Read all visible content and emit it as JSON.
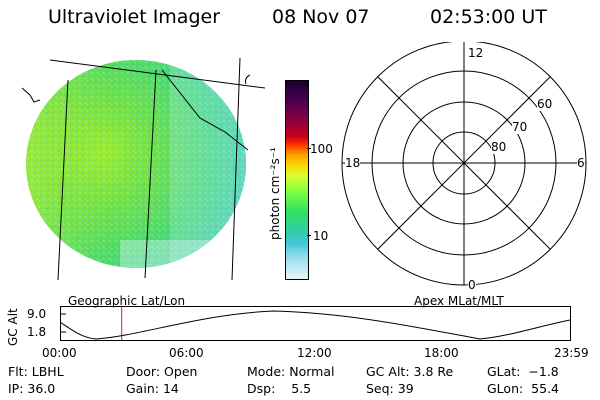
{
  "header": {
    "title": "Ultraviolet Imager",
    "date": "08 Nov 07",
    "time": "02:53:00 UT"
  },
  "colorbar": {
    "unit_label": "photon cm⁻²s⁻¹",
    "ticks": [
      "100",
      "10"
    ],
    "colors": [
      "#1a0030",
      "#4a0050",
      "#8a0040",
      "#c80018",
      "#ff3000",
      "#ff9a00",
      "#ffd200",
      "#d8ff30",
      "#80ff40",
      "#30e060",
      "#30d0a0",
      "#40c8d8",
      "#a0e0f0",
      "#e8f4f8"
    ]
  },
  "polar_plot": {
    "label": "Apex MLat/MLT",
    "mlt_labels": {
      "top": "12",
      "bottom": "0",
      "left": "18",
      "right": "6"
    },
    "lat_labels": [
      "60",
      "70",
      "80"
    ]
  },
  "geo_plot": {
    "label": "Geographic Lat/Lon"
  },
  "altitude_plot": {
    "ylabel": "GC Alt",
    "y_ticks": [
      "9.0",
      "1.8"
    ],
    "x_ticks": [
      "00:00",
      "06:00",
      "12:00",
      "18:00",
      "23:59"
    ],
    "current_time_marker_hours": 2.88
  },
  "info": {
    "row1": {
      "filt_label": "Flt:",
      "filt_value": "LBHL",
      "door_label": "Door:",
      "door_value": "Open",
      "mode_label": "Mode:",
      "mode_value": "Normal",
      "gcalt_label": "GC Alt:",
      "gcalt_value": "3.8 Re",
      "glat_label": "GLat:",
      "glat_value": "−1.8"
    },
    "row2": {
      "ip_label": "IP:",
      "ip_value": "36.0",
      "gain_label": "Gain:",
      "gain_value": "14",
      "dsp_label": "Dsp:",
      "dsp_value": "5.5",
      "seq_label": "Seq:",
      "seq_value": "39",
      "glon_label": "GLon:",
      "glon_value": "55.4"
    }
  }
}
